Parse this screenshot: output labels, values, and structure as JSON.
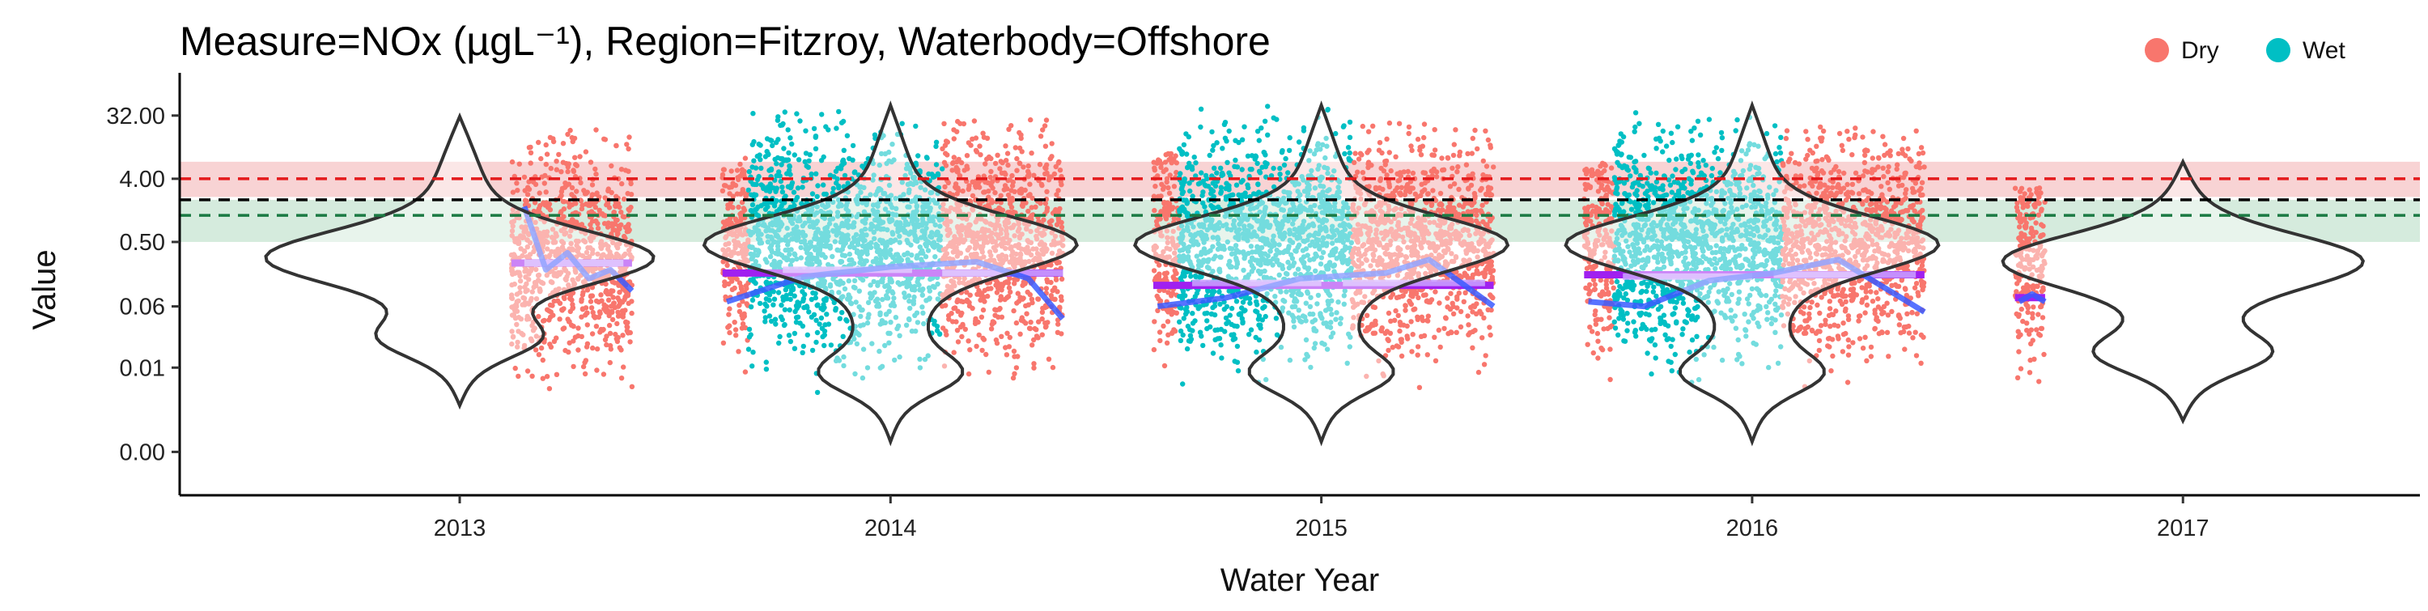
{
  "chart_data": {
    "type": "scatter",
    "title": "Measure=NOx (µgL⁻¹), Region=Fitzroy, Waterbody=Offshore",
    "xlabel": "Water Year",
    "ylabel": "Value",
    "x_categories": [
      "2013",
      "2014",
      "2015",
      "2016",
      "2017"
    ],
    "y_scale": "log",
    "y_ticks": [
      {
        "value": 0.0005,
        "label": "0.00"
      },
      {
        "value": 0.008,
        "label": "0.01"
      },
      {
        "value": 0.06,
        "label": "0.06"
      },
      {
        "value": 0.5,
        "label": "0.50"
      },
      {
        "value": 4,
        "label": "4.00"
      },
      {
        "value": 32,
        "label": "32.00"
      }
    ],
    "ylim": [
      0.00012,
      100
    ],
    "legend": {
      "placement": "top-right",
      "entries": [
        {
          "name": "Dry",
          "color": "#F8766D"
        },
        {
          "name": "Wet",
          "color": "#00BFC4"
        }
      ]
    },
    "reference_lines": [
      {
        "value": 4.0,
        "color": "#E41A1C",
        "band": [
          2.2,
          7.0
        ],
        "band_color": "#F4B6B8"
      },
      {
        "value": 2.0,
        "color": "#000000",
        "band": null,
        "band_color": null
      },
      {
        "value": 1.2,
        "color": "#1B7A43",
        "band": [
          0.5,
          2.0
        ],
        "band_color": "#B9DDC7"
      }
    ],
    "years": [
      {
        "year": "2013",
        "violin_median": 0.3,
        "violin_range": [
          0.0023,
          31
        ],
        "points": [
          {
            "season": "Dry",
            "x_range": [
              2013.12,
              2013.4
            ],
            "y_range": [
              0.004,
              22
            ]
          }
        ],
        "annual_mean": 0.25,
        "season_means": [
          {
            "season": "Dry",
            "x_range": [
              2013.15,
              2013.38
            ],
            "value": 0.25
          }
        ],
        "smoother": [
          [
            2013.15,
            1.6
          ],
          [
            2013.2,
            0.2
          ],
          [
            2013.25,
            0.35
          ],
          [
            2013.3,
            0.15
          ],
          [
            2013.35,
            0.2
          ],
          [
            2013.4,
            0.1
          ]
        ]
      },
      {
        "year": "2014",
        "violin_median": 0.5,
        "violin_range": [
          0.0007,
          45
        ],
        "points": [
          {
            "season": "Dry",
            "x_range": [
              2013.61,
              2013.67
            ],
            "y_range": [
              0.004,
              8
            ]
          },
          {
            "season": "Wet",
            "x_range": [
              2013.67,
              2014.12
            ],
            "y_range": [
              0.002,
              40
            ]
          },
          {
            "season": "Dry",
            "x_range": [
              2014.12,
              2014.4
            ],
            "y_range": [
              0.002,
              30
            ]
          }
        ],
        "annual_mean": 0.18,
        "season_means": [
          {
            "season": "Wet",
            "x_range": [
              2013.75,
              2014.05
            ],
            "value": 0.2
          },
          {
            "season": "Dry",
            "x_range": [
              2014.12,
              2014.4
            ],
            "value": 0.18
          }
        ],
        "smoother": [
          [
            2013.62,
            0.07
          ],
          [
            2013.8,
            0.16
          ],
          [
            2014.0,
            0.22
          ],
          [
            2014.2,
            0.26
          ],
          [
            2014.32,
            0.15
          ],
          [
            2014.4,
            0.04
          ]
        ]
      },
      {
        "year": "2015",
        "violin_median": 0.5,
        "violin_range": [
          0.0007,
          45
        ],
        "points": [
          {
            "season": "Dry",
            "x_range": [
              2014.61,
              2014.67
            ],
            "y_range": [
              0.001,
              10
            ]
          },
          {
            "season": "Wet",
            "x_range": [
              2014.67,
              2015.07
            ],
            "y_range": [
              5e-05,
              45
            ]
          },
          {
            "season": "Dry",
            "x_range": [
              2015.07,
              2015.4
            ],
            "y_range": [
              0.002,
              25
            ]
          }
        ],
        "annual_mean": 0.12,
        "season_means": [
          {
            "season": "Wet",
            "x_range": [
              2014.7,
              2015.0
            ],
            "value": 0.13
          },
          {
            "season": "Dry",
            "x_range": [
              2015.05,
              2015.38
            ],
            "value": 0.13
          }
        ],
        "smoother": [
          [
            2014.62,
            0.06
          ],
          [
            2014.78,
            0.08
          ],
          [
            2014.95,
            0.15
          ],
          [
            2015.15,
            0.18
          ],
          [
            2015.25,
            0.28
          ],
          [
            2015.4,
            0.06
          ]
        ]
      },
      {
        "year": "2016",
        "violin_median": 0.5,
        "violin_range": [
          0.0007,
          45
        ],
        "points": [
          {
            "season": "Dry",
            "x_range": [
              2015.61,
              2015.68
            ],
            "y_range": [
              0.003,
              7
            ]
          },
          {
            "season": "Wet",
            "x_range": [
              2015.68,
              2016.07
            ],
            "y_range": [
              0.002,
              40
            ]
          },
          {
            "season": "Dry",
            "x_range": [
              2016.07,
              2016.4
            ],
            "y_range": [
              0.002,
              22
            ]
          }
        ],
        "annual_mean": 0.17,
        "season_means": [
          {
            "season": "Wet",
            "x_range": [
              2015.7,
              2016.0
            ],
            "value": 0.16
          },
          {
            "season": "Dry",
            "x_range": [
              2016.05,
              2016.38
            ],
            "value": 0.17
          }
        ],
        "smoother": [
          [
            2015.62,
            0.07
          ],
          [
            2015.75,
            0.06
          ],
          [
            2015.9,
            0.14
          ],
          [
            2016.05,
            0.18
          ],
          [
            2016.2,
            0.28
          ],
          [
            2016.4,
            0.05
          ]
        ]
      },
      {
        "year": "2017",
        "violin_median": 0.3,
        "violin_range": [
          0.0014,
          7
        ],
        "points": [
          {
            "season": "Dry",
            "x_range": [
              2016.61,
              2016.68
            ],
            "y_range": [
              0.004,
              3
            ]
          }
        ],
        "annual_mean": 0.08,
        "season_means": [],
        "smoother": [
          [
            2016.62,
            0.07
          ],
          [
            2016.65,
            0.09
          ],
          [
            2016.68,
            0.07
          ]
        ]
      }
    ]
  }
}
